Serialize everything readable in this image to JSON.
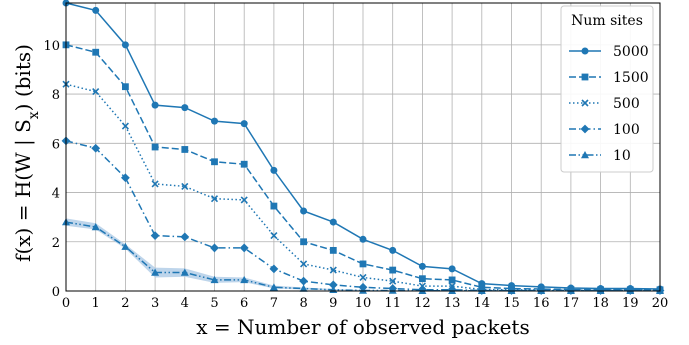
{
  "chart_data": {
    "type": "line",
    "xlabel": "x = Number of observed packets",
    "ylabel": "f(x) = H(W | Sx) (bits)",
    "ylabel_main": "f(x) = H(W | S",
    "ylabel_sub": "x",
    "ylabel_end": ") (bits)",
    "xlim": [
      0,
      20
    ],
    "ylim": [
      0,
      11.7
    ],
    "x": [
      0,
      1,
      2,
      3,
      4,
      5,
      6,
      7,
      8,
      9,
      10,
      11,
      12,
      13,
      14,
      15,
      16,
      17,
      18,
      19,
      20
    ],
    "x_ticks": [
      "0",
      "1",
      "2",
      "3",
      "4",
      "5",
      "6",
      "7",
      "8",
      "9",
      "10",
      "11",
      "12",
      "13",
      "14",
      "15",
      "16",
      "17",
      "18",
      "19",
      "20"
    ],
    "y_ticks": [
      "0",
      "2",
      "4",
      "6",
      "8",
      "10"
    ],
    "grid": true,
    "legend": {
      "title": "Num sites",
      "position": "top-right"
    },
    "color": "#1f77b4",
    "band_color": "#aecbe6",
    "series": [
      {
        "name": "5000",
        "marker": "circle",
        "dash": "solid",
        "values": [
          11.7,
          11.4,
          10.0,
          7.55,
          7.45,
          6.9,
          6.8,
          4.9,
          3.25,
          2.8,
          2.1,
          1.65,
          1.0,
          0.9,
          0.3,
          0.22,
          0.17,
          0.12,
          0.1,
          0.1,
          0.08
        ]
      },
      {
        "name": "1500",
        "marker": "square",
        "dash": "dashed",
        "values": [
          10.0,
          9.7,
          8.3,
          5.85,
          5.75,
          5.25,
          5.15,
          3.45,
          2.0,
          1.65,
          1.1,
          0.85,
          0.5,
          0.45,
          0.15,
          0.1,
          0.08,
          0.06,
          0.05,
          0.05,
          0.05
        ]
      },
      {
        "name": "500",
        "marker": "x",
        "dash": "dotted",
        "values": [
          8.4,
          8.1,
          6.7,
          4.35,
          4.25,
          3.75,
          3.7,
          2.25,
          1.1,
          0.85,
          0.55,
          0.4,
          0.2,
          0.2,
          0.06,
          0.05,
          0.04,
          0.03,
          0.03,
          0.03,
          0.03
        ]
      },
      {
        "name": "100",
        "marker": "diamond",
        "dash": "dashdot",
        "values": [
          6.1,
          5.8,
          4.6,
          2.25,
          2.2,
          1.75,
          1.75,
          0.9,
          0.4,
          0.25,
          0.15,
          0.1,
          0.05,
          0.05,
          0.02,
          0.02,
          0.02,
          0.02,
          0.02,
          0.02,
          0.02
        ]
      },
      {
        "name": "10",
        "marker": "triangle",
        "dash": "dashdotdot",
        "values": [
          2.8,
          2.6,
          1.8,
          0.75,
          0.75,
          0.45,
          0.45,
          0.15,
          0.1,
          0.05,
          0.02,
          0.02,
          0.01,
          0.01,
          0.01,
          0.01,
          0.01,
          0.01,
          0.01,
          0.01,
          0.01
        ],
        "band_lower": [
          2.65,
          2.5,
          1.72,
          0.55,
          0.58,
          0.33,
          0.36,
          0.1,
          0.06,
          0.03,
          0.01,
          0.01,
          0.0,
          0.0,
          0.0,
          0.0,
          0.0,
          0.0,
          0.0,
          0.0,
          0.0
        ],
        "band_upper": [
          2.95,
          2.75,
          1.9,
          0.95,
          0.92,
          0.58,
          0.55,
          0.22,
          0.14,
          0.08,
          0.04,
          0.03,
          0.02,
          0.02,
          0.02,
          0.02,
          0.02,
          0.02,
          0.02,
          0.02,
          0.02
        ]
      }
    ]
  }
}
